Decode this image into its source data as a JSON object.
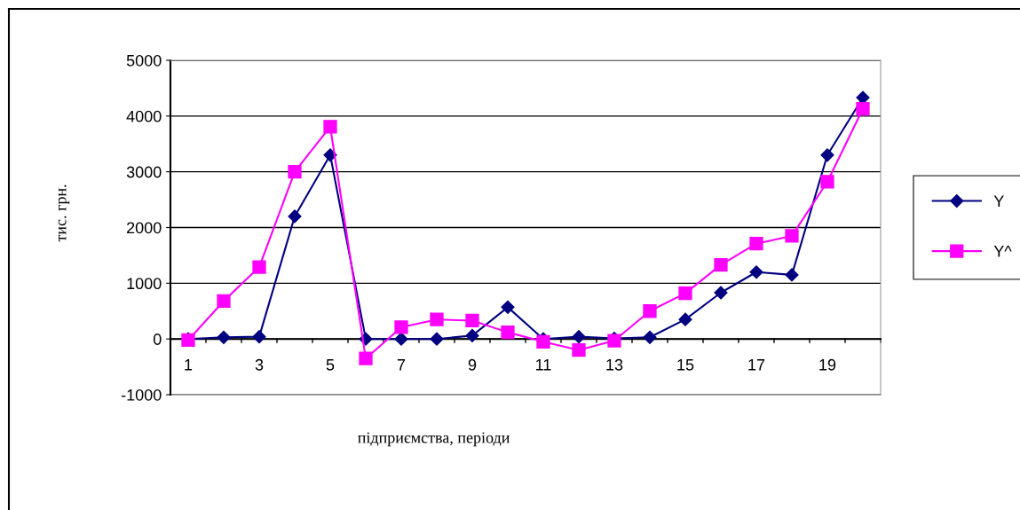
{
  "chart_data": {
    "type": "line",
    "xlabel": "підприємства, періоди",
    "ylabel": "тис. грн.",
    "categories": [
      "1",
      null,
      "3",
      null,
      "5",
      null,
      "7",
      null,
      "9",
      null,
      "11",
      null,
      "13",
      null,
      "15",
      null,
      "17",
      null,
      "19",
      null
    ],
    "series": [
      {
        "name": "Y",
        "color": "#000080",
        "marker": "diamond",
        "values": [
          0,
          30,
          40,
          2200,
          3300,
          0,
          0,
          0,
          60,
          570,
          0,
          40,
          10,
          30,
          350,
          830,
          1200,
          1150,
          3300,
          4330
        ]
      },
      {
        "name": "Y^",
        "color": "#ff00ff",
        "marker": "square",
        "values": [
          -20,
          680,
          1290,
          3000,
          3810,
          -350,
          210,
          350,
          330,
          120,
          -50,
          -200,
          -30,
          500,
          820,
          1330,
          1710,
          1850,
          2820,
          4130
        ]
      }
    ],
    "ylim": [
      -1000,
      5000
    ],
    "yticks": [
      -1000,
      0,
      1000,
      2000,
      3000,
      4000,
      5000
    ],
    "grid": "y",
    "legend": "right",
    "line_style": "solid"
  }
}
